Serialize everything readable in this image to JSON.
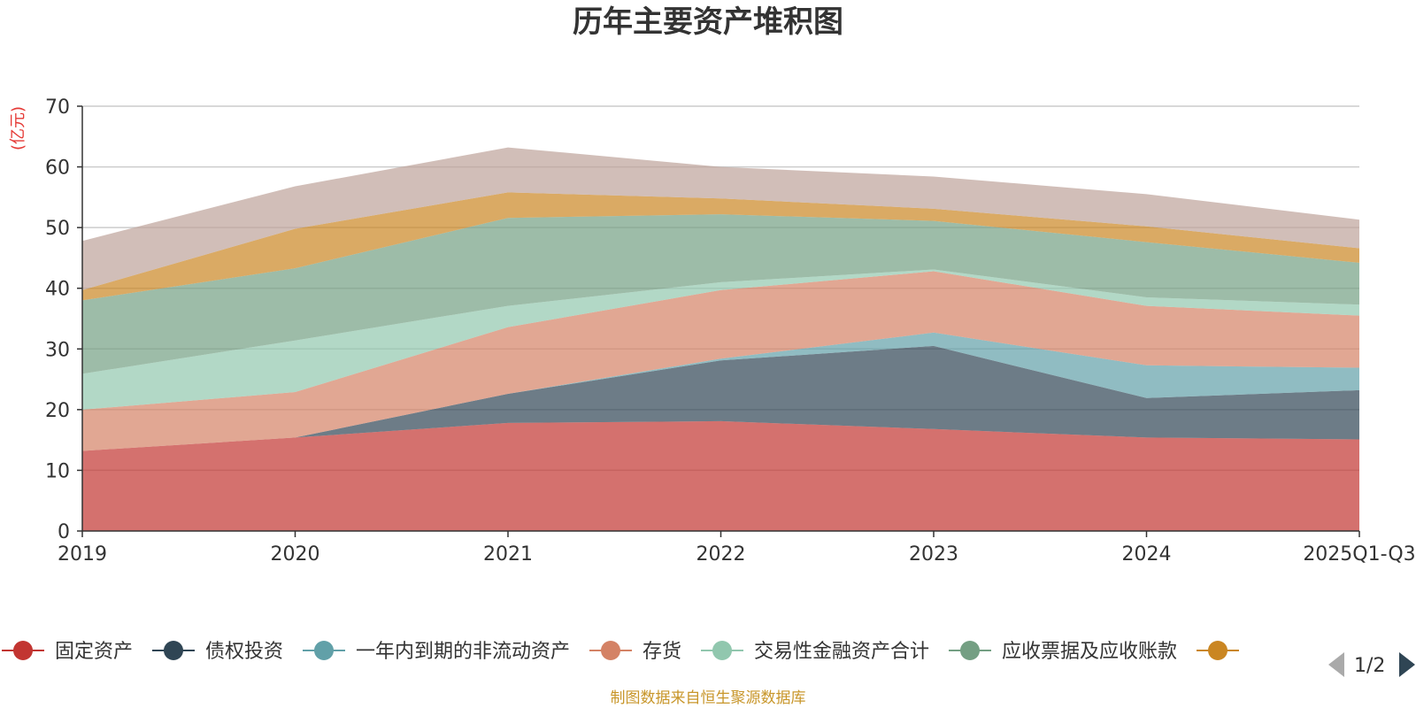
{
  "chart_data": {
    "type": "area",
    "stacked": true,
    "title": "历年主要资产堆积图",
    "ylabel": "(亿元)",
    "xlabel": "",
    "categories": [
      "2019",
      "2020",
      "2021",
      "2022",
      "2023",
      "2024",
      "2025Q1-Q3"
    ],
    "ylim": [
      0,
      70
    ],
    "yticks": [
      0,
      10,
      20,
      30,
      40,
      50,
      60,
      70
    ],
    "grid": true,
    "series": [
      {
        "name": "固定资产",
        "color": "#c23531",
        "values": [
          13.2,
          15.4,
          17.8,
          18.1,
          16.8,
          15.4,
          15.1
        ]
      },
      {
        "name": "债权投资",
        "color": "#2f4554",
        "values": [
          0.0,
          0.0,
          4.8,
          10.0,
          13.7,
          6.5,
          8.1
        ]
      },
      {
        "name": "一年内到期的非流动资产",
        "color": "#61a0a8",
        "values": [
          0.0,
          0.0,
          0.0,
          0.3,
          2.2,
          5.4,
          3.7
        ]
      },
      {
        "name": "存货",
        "color": "#d48265",
        "values": [
          6.8,
          7.5,
          11.0,
          11.3,
          10.1,
          9.8,
          8.6
        ]
      },
      {
        "name": "交易性金融资产合计",
        "color": "#91c7ae",
        "values": [
          5.9,
          8.5,
          3.5,
          1.3,
          0.3,
          1.4,
          1.8
        ]
      },
      {
        "name": "应收票据及应收账款",
        "color": "#749f83",
        "values": [
          12.1,
          11.9,
          14.5,
          11.2,
          8.0,
          9.1,
          6.9
        ]
      },
      {
        "name": "",
        "color": "#ca8622",
        "values": [
          1.7,
          6.5,
          4.2,
          2.6,
          2.0,
          2.6,
          2.4
        ]
      },
      {
        "name": "",
        "color": "#bda29a",
        "values": [
          8.1,
          7.0,
          7.4,
          5.2,
          5.3,
          5.3,
          4.7
        ]
      }
    ],
    "legend": {
      "placement": "bottom",
      "page_label": "1/2"
    }
  },
  "footer": {
    "source": "制图数据来自恒生聚源数据库"
  }
}
